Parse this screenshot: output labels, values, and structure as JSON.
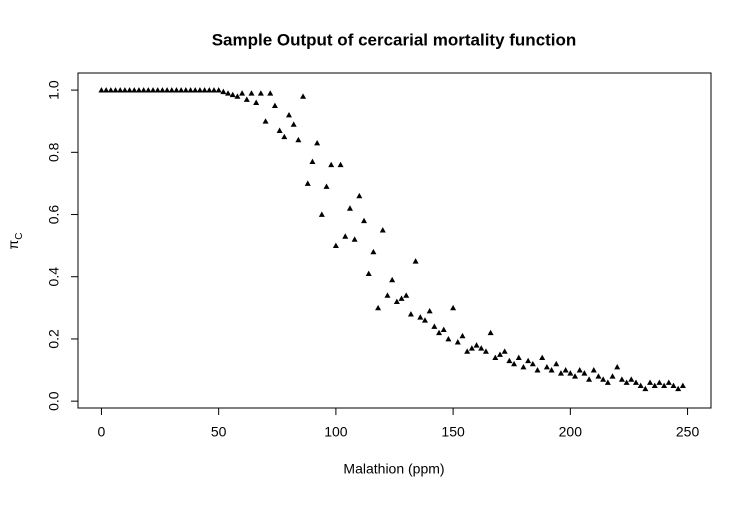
{
  "chart_data": {
    "type": "scatter",
    "title": "Sample Output of cercarial mortality function",
    "xlabel": "Malathion (ppm)",
    "ylabel": "π",
    "ylabel_sub": "C",
    "xlim": [
      -10,
      260
    ],
    "ylim": [
      -0.022,
      1.055
    ],
    "xticks": [
      0,
      50,
      100,
      150,
      200,
      250
    ],
    "yticks": [
      {
        "value": 0,
        "label": "0.0"
      },
      0.2,
      0.4,
      0.6,
      0.8,
      {
        "value": 1,
        "label": "1.0"
      }
    ],
    "color": "#000000",
    "x": [
      0,
      2,
      4,
      6,
      8,
      10,
      12,
      14,
      16,
      18,
      20,
      22,
      24,
      26,
      28,
      30,
      32,
      34,
      36,
      38,
      40,
      42,
      44,
      46,
      48,
      50,
      52,
      54,
      56,
      58,
      60,
      62,
      64,
      66,
      68,
      70,
      72,
      74,
      76,
      78,
      80,
      82,
      84,
      86,
      88,
      90,
      92,
      94,
      96,
      98,
      100,
      102,
      104,
      106,
      108,
      110,
      112,
      114,
      116,
      118,
      120,
      122,
      124,
      126,
      128,
      130,
      132,
      134,
      136,
      138,
      140,
      142,
      144,
      146,
      148,
      150,
      152,
      154,
      156,
      158,
      160,
      162,
      164,
      166,
      168,
      170,
      172,
      174,
      176,
      178,
      180,
      182,
      184,
      186,
      188,
      190,
      192,
      194,
      196,
      198,
      200,
      202,
      204,
      206,
      208,
      210,
      212,
      214,
      216,
      218,
      220,
      222,
      224,
      226,
      228,
      230,
      232,
      234,
      236,
      238,
      240,
      242,
      244,
      246,
      248
    ],
    "values": [
      1,
      1,
      1,
      1,
      1,
      1,
      1,
      1,
      1,
      1,
      1,
      1,
      1,
      1,
      1,
      1,
      1,
      1,
      1,
      1,
      1,
      1,
      1,
      1,
      1,
      1,
      0.995,
      0.99,
      0.985,
      0.98,
      0.99,
      0.97,
      0.99,
      0.96,
      0.99,
      0.9,
      0.99,
      0.95,
      0.87,
      0.85,
      0.92,
      0.89,
      0.84,
      0.98,
      0.7,
      0.77,
      0.83,
      0.6,
      0.69,
      0.76,
      0.5,
      0.76,
      0.53,
      0.62,
      0.52,
      0.66,
      0.58,
      0.41,
      0.48,
      0.3,
      0.55,
      0.34,
      0.39,
      0.32,
      0.33,
      0.34,
      0.28,
      0.45,
      0.27,
      0.26,
      0.29,
      0.24,
      0.22,
      0.23,
      0.2,
      0.3,
      0.19,
      0.21,
      0.16,
      0.17,
      0.18,
      0.17,
      0.16,
      0.22,
      0.14,
      0.15,
      0.16,
      0.13,
      0.12,
      0.14,
      0.11,
      0.13,
      0.12,
      0.1,
      0.14,
      0.11,
      0.1,
      0.12,
      0.09,
      0.1,
      0.09,
      0.08,
      0.1,
      0.09,
      0.07,
      0.1,
      0.08,
      0.07,
      0.06,
      0.08,
      0.11,
      0.07,
      0.06,
      0.07,
      0.06,
      0.05,
      0.04,
      0.06,
      0.05,
      0.06,
      0.05,
      0.06,
      0.05,
      0.04,
      0.05
    ]
  }
}
